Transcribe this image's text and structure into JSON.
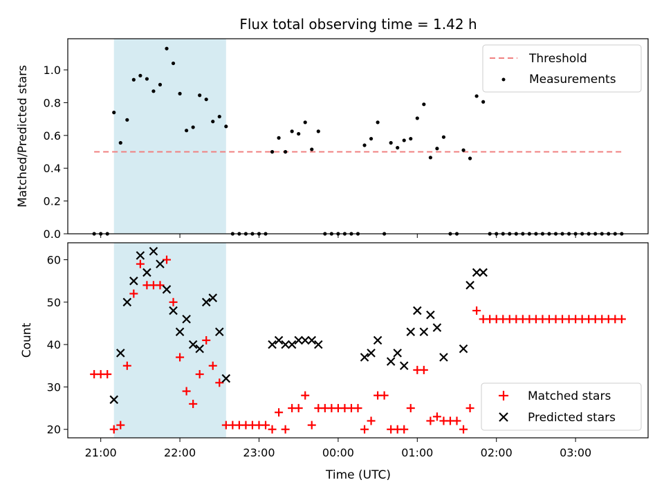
{
  "chart_data": [
    {
      "type": "scatter",
      "title": "Flux total observing time = 1.42 h",
      "xlabel": "",
      "ylabel": "Matched/Predicted stars",
      "x_unit": "time (UTC), 10-minute cadence",
      "xlim": [
        "20:35",
        "03:55"
      ],
      "ylim": [
        0,
        1.19
      ],
      "yticks": [
        "0.0",
        "0.2",
        "0.4",
        "0.6",
        "0.8",
        "1.0"
      ],
      "xticks": [
        "21:00",
        "22:00",
        "23:00",
        "00:00",
        "01:00",
        "02:00",
        "03:00"
      ],
      "highlight_span": [
        "21:10",
        "22:35"
      ],
      "legend": {
        "position": "top-right",
        "entries": [
          "Threshold",
          "Measurements"
        ]
      },
      "threshold": {
        "name": "Threshold",
        "value": 0.5,
        "x_range": [
          "20:55",
          "03:35"
        ],
        "color": "#f08080"
      },
      "series": [
        {
          "name": "Measurements",
          "marker": "dot",
          "color": "#000000",
          "points": [
            [
              "20:55",
              0
            ],
            [
              "21:00",
              0
            ],
            [
              "21:05",
              0
            ],
            [
              "21:10",
              0.74
            ],
            [
              "21:15",
              0.555
            ],
            [
              "21:20",
              0.695
            ],
            [
              "21:25",
              0.94
            ],
            [
              "21:30",
              0.965
            ],
            [
              "21:35",
              0.945
            ],
            [
              "21:40",
              0.87
            ],
            [
              "21:45",
              0.91
            ],
            [
              "21:50",
              1.13
            ],
            [
              "21:55",
              1.04
            ],
            [
              "22:00",
              0.855
            ],
            [
              "22:05",
              0.63
            ],
            [
              "22:10",
              0.65
            ],
            [
              "22:15",
              0.845
            ],
            [
              "22:20",
              0.82
            ],
            [
              "22:25",
              0.685
            ],
            [
              "22:30",
              0.715
            ],
            [
              "22:35",
              0.655
            ],
            [
              "22:40",
              0
            ],
            [
              "22:45",
              0
            ],
            [
              "22:50",
              0
            ],
            [
              "22:55",
              0
            ],
            [
              "23:00",
              0
            ],
            [
              "23:05",
              0
            ],
            [
              "23:10",
              0.5
            ],
            [
              "23:15",
              0.585
            ],
            [
              "23:20",
              0.5
            ],
            [
              "23:25",
              0.625
            ],
            [
              "23:30",
              0.61
            ],
            [
              "23:35",
              0.68
            ],
            [
              "23:40",
              0.515
            ],
            [
              "23:45",
              0.625
            ],
            [
              "23:50",
              0
            ],
            [
              "23:55",
              0
            ],
            [
              "00:00",
              0
            ],
            [
              "00:05",
              0
            ],
            [
              "00:10",
              0
            ],
            [
              "00:15",
              0
            ],
            [
              "00:20",
              0.54
            ],
            [
              "00:25",
              0.58
            ],
            [
              "00:30",
              0.68
            ],
            [
              "00:35",
              0
            ],
            [
              "00:40",
              0.555
            ],
            [
              "00:45",
              0.525
            ],
            [
              "00:50",
              0.57
            ],
            [
              "00:55",
              0.58
            ],
            [
              "01:00",
              0.705
            ],
            [
              "01:05",
              0.79
            ],
            [
              "01:10",
              0.465
            ],
            [
              "01:15",
              0.52
            ],
            [
              "01:20",
              0.59
            ],
            [
              "01:25",
              0
            ],
            [
              "01:30",
              0
            ],
            [
              "01:35",
              0.51
            ],
            [
              "01:40",
              0.46
            ],
            [
              "01:45",
              0.84
            ],
            [
              "01:50",
              0.805
            ],
            [
              "01:55",
              0
            ],
            [
              "02:00",
              0
            ],
            [
              "02:05",
              0
            ],
            [
              "02:10",
              0
            ],
            [
              "02:15",
              0
            ],
            [
              "02:20",
              0
            ],
            [
              "02:25",
              0
            ],
            [
              "02:30",
              0
            ],
            [
              "02:35",
              0
            ],
            [
              "02:40",
              0
            ],
            [
              "02:45",
              0
            ],
            [
              "02:50",
              0
            ],
            [
              "02:55",
              0
            ],
            [
              "03:00",
              0
            ],
            [
              "03:05",
              0
            ],
            [
              "03:10",
              0
            ],
            [
              "03:15",
              0
            ],
            [
              "03:20",
              0
            ],
            [
              "03:25",
              0
            ],
            [
              "03:30",
              0
            ],
            [
              "03:35",
              0
            ]
          ]
        }
      ]
    },
    {
      "type": "scatter",
      "title": "",
      "xlabel": "Time (UTC)",
      "ylabel": "Count",
      "xlim": [
        "20:35",
        "03:55"
      ],
      "ylim": [
        18,
        64
      ],
      "yticks": [
        "20",
        "30",
        "40",
        "50",
        "60"
      ],
      "xticks": [
        "21:00",
        "22:00",
        "23:00",
        "00:00",
        "01:00",
        "02:00",
        "03:00"
      ],
      "highlight_span": [
        "21:10",
        "22:35"
      ],
      "legend": {
        "position": "bottom-right",
        "entries": [
          "Matched stars",
          "Predicted stars"
        ]
      },
      "series": [
        {
          "name": "Matched stars",
          "marker": "plus",
          "color": "#ff0000",
          "points": [
            [
              "20:55",
              33
            ],
            [
              "21:00",
              33
            ],
            [
              "21:05",
              33
            ],
            [
              "21:10",
              20
            ],
            [
              "21:15",
              21
            ],
            [
              "21:20",
              35
            ],
            [
              "21:25",
              52
            ],
            [
              "21:30",
              59
            ],
            [
              "21:35",
              54
            ],
            [
              "21:40",
              54
            ],
            [
              "21:45",
              54
            ],
            [
              "21:50",
              60
            ],
            [
              "21:55",
              50
            ],
            [
              "22:00",
              37
            ],
            [
              "22:05",
              29
            ],
            [
              "22:10",
              26
            ],
            [
              "22:15",
              33
            ],
            [
              "22:20",
              41
            ],
            [
              "22:25",
              35
            ],
            [
              "22:30",
              31
            ],
            [
              "22:35",
              21
            ],
            [
              "22:40",
              21
            ],
            [
              "22:45",
              21
            ],
            [
              "22:50",
              21
            ],
            [
              "22:55",
              21
            ],
            [
              "23:00",
              21
            ],
            [
              "23:05",
              21
            ],
            [
              "23:10",
              20
            ],
            [
              "23:15",
              24
            ],
            [
              "23:20",
              20
            ],
            [
              "23:25",
              25
            ],
            [
              "23:30",
              25
            ],
            [
              "23:35",
              28
            ],
            [
              "23:40",
              21
            ],
            [
              "23:45",
              25
            ],
            [
              "23:50",
              25
            ],
            [
              "23:55",
              25
            ],
            [
              "00:00",
              25
            ],
            [
              "00:05",
              25
            ],
            [
              "00:10",
              25
            ],
            [
              "00:15",
              25
            ],
            [
              "00:20",
              20
            ],
            [
              "00:25",
              22
            ],
            [
              "00:30",
              28
            ],
            [
              "00:35",
              28
            ],
            [
              "00:40",
              20
            ],
            [
              "00:45",
              20
            ],
            [
              "00:50",
              20
            ],
            [
              "00:55",
              25
            ],
            [
              "01:00",
              34
            ],
            [
              "01:05",
              34
            ],
            [
              "01:10",
              22
            ],
            [
              "01:15",
              23
            ],
            [
              "01:20",
              22
            ],
            [
              "01:25",
              22
            ],
            [
              "01:30",
              22
            ],
            [
              "01:35",
              20
            ],
            [
              "01:40",
              25
            ],
            [
              "01:45",
              48
            ],
            [
              "01:50",
              46
            ],
            [
              "01:55",
              46
            ],
            [
              "02:00",
              46
            ],
            [
              "02:05",
              46
            ],
            [
              "02:10",
              46
            ],
            [
              "02:15",
              46
            ],
            [
              "02:20",
              46
            ],
            [
              "02:25",
              46
            ],
            [
              "02:30",
              46
            ],
            [
              "02:35",
              46
            ],
            [
              "02:40",
              46
            ],
            [
              "02:45",
              46
            ],
            [
              "02:50",
              46
            ],
            [
              "02:55",
              46
            ],
            [
              "03:00",
              46
            ],
            [
              "03:05",
              46
            ],
            [
              "03:10",
              46
            ],
            [
              "03:15",
              46
            ],
            [
              "03:20",
              46
            ],
            [
              "03:25",
              46
            ],
            [
              "03:30",
              46
            ],
            [
              "03:35",
              46
            ]
          ]
        },
        {
          "name": "Predicted stars",
          "marker": "x",
          "color": "#000000",
          "points": [
            [
              "21:10",
              27
            ],
            [
              "21:15",
              38
            ],
            [
              "21:20",
              50
            ],
            [
              "21:25",
              55
            ],
            [
              "21:30",
              61
            ],
            [
              "21:35",
              57
            ],
            [
              "21:40",
              62
            ],
            [
              "21:45",
              59
            ],
            [
              "21:50",
              53
            ],
            [
              "21:55",
              48
            ],
            [
              "22:00",
              43
            ],
            [
              "22:05",
              46
            ],
            [
              "22:10",
              40
            ],
            [
              "22:15",
              39
            ],
            [
              "22:20",
              50
            ],
            [
              "22:25",
              51
            ],
            [
              "22:30",
              43
            ],
            [
              "22:35",
              32
            ],
            [
              "23:10",
              40
            ],
            [
              "23:15",
              41
            ],
            [
              "23:20",
              40
            ],
            [
              "23:25",
              40
            ],
            [
              "23:30",
              41
            ],
            [
              "23:35",
              41
            ],
            [
              "23:40",
              41
            ],
            [
              "23:45",
              40
            ],
            [
              "00:20",
              37
            ],
            [
              "00:25",
              38
            ],
            [
              "00:30",
              41
            ],
            [
              "00:40",
              36
            ],
            [
              "00:45",
              38
            ],
            [
              "00:50",
              35
            ],
            [
              "00:55",
              43
            ],
            [
              "01:00",
              48
            ],
            [
              "01:05",
              43
            ],
            [
              "01:10",
              47
            ],
            [
              "01:15",
              44
            ],
            [
              "01:20",
              37
            ],
            [
              "01:35",
              39
            ],
            [
              "01:40",
              54
            ],
            [
              "01:45",
              57
            ],
            [
              "01:50",
              57
            ]
          ]
        }
      ]
    }
  ]
}
